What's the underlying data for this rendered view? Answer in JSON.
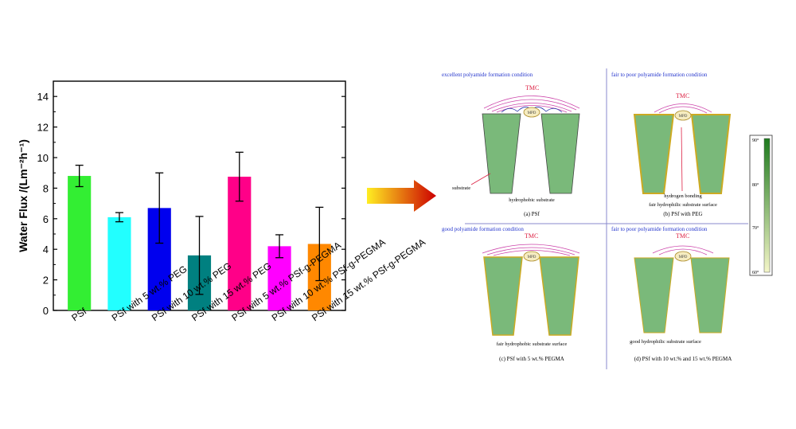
{
  "chart_data": {
    "type": "bar",
    "ylabel": "Water Flux /(Lm⁻²h⁻¹)",
    "ylim": [
      0,
      15
    ],
    "yticks": [
      0,
      2,
      4,
      6,
      8,
      10,
      12,
      14
    ],
    "categories": [
      "PSf",
      "PSf with 5 wt.% PEG",
      "PSf with 10 wt.% PEG",
      "PSf with 15 wt.% PEG",
      "PSf with 5 wt.% PSf-g-PEGMA",
      "PSf with 10 wt.% PSf-g-PEGMA",
      "PSf with 15 wt.% PSf-g-PEGMA"
    ],
    "values": [
      8.8,
      6.1,
      6.7,
      3.6,
      8.75,
      4.2,
      4.35
    ],
    "errors": [
      0.7,
      0.3,
      2.3,
      2.55,
      1.6,
      0.75,
      2.4
    ],
    "colors": [
      "#33ee33",
      "#22ffff",
      "#0000ee",
      "#008080",
      "#ff0088",
      "#ff00ff",
      "#ff8800"
    ]
  },
  "arrow": {
    "gradient_start": "#ffee22",
    "gradient_end": "#cc0000"
  },
  "diagram": {
    "panels": [
      {
        "heading": "excellent polyamide formation condition",
        "tmc": "TMC",
        "mpd": "MPD",
        "substrate_note": "substrate",
        "surface_note": "hydrophobic substrate",
        "caption": "(a) PSf"
      },
      {
        "heading": "fair to poor polyamide formation condition",
        "tmc": "TMC",
        "mpd": "MPD",
        "bond_note": "hydrogen bonding",
        "surface_note": "fair hydrophilic substrate surface",
        "caption": "(b) PSf with PEG"
      },
      {
        "heading": "good polyamide formation condition",
        "tmc": "TMC",
        "mpd": "MPD",
        "surface_note": "fair hydrophobic substrate surface",
        "caption": "(c) PSf with 5 wt.% PEGMA"
      },
      {
        "heading": "fair to poor polyamide formation condition",
        "tmc": "TMC",
        "mpd": "MPD",
        "surface_note": "good hydrophilic substrate surface",
        "caption": "(d) PSf with 10 wt.% and 15 wt.% PEGMA"
      }
    ],
    "colorbar": {
      "labels": [
        "90°",
        "80°",
        "70°",
        "60°"
      ],
      "color_high": "#1e7a1e",
      "color_low": "#f4f6c8"
    },
    "colors": {
      "heading": "#2233cc",
      "tmc": "#dd2244",
      "substrate_fill": "#7ab97a",
      "divider": "#8888cc"
    }
  }
}
